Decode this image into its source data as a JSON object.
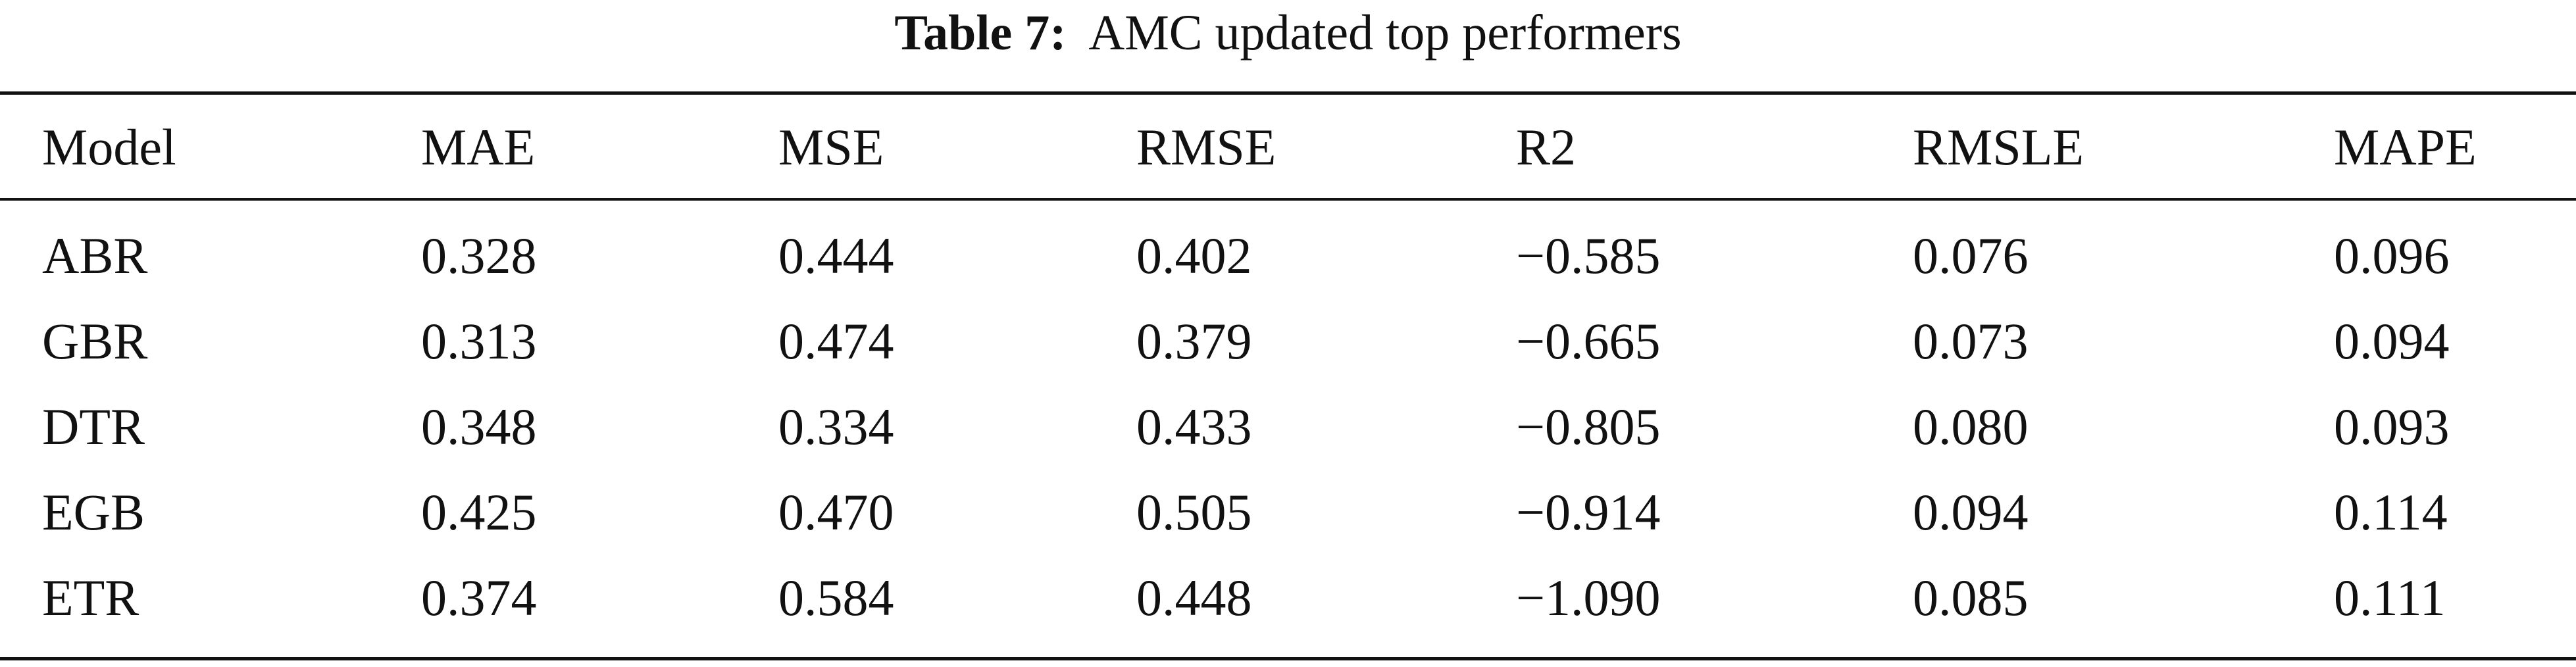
{
  "caption": {
    "label": "Table 7:",
    "text": "AMC updated top performers"
  },
  "table": {
    "columns": [
      "Model",
      "MAE",
      "MSE",
      "RMSE",
      "R2",
      "RMSLE",
      "MAPE"
    ],
    "rows": [
      [
        "ABR",
        "0.328",
        "0.444",
        "0.402",
        "−0.585",
        "0.076",
        "0.096"
      ],
      [
        "GBR",
        "0.313",
        "0.474",
        "0.379",
        "−0.665",
        "0.073",
        "0.094"
      ],
      [
        "DTR",
        "0.348",
        "0.334",
        "0.433",
        "−0.805",
        "0.080",
        "0.093"
      ],
      [
        "EGB",
        "0.425",
        "0.470",
        "0.505",
        "−0.914",
        "0.094",
        "0.114"
      ],
      [
        "ETR",
        "0.374",
        "0.584",
        "0.448",
        "−1.090",
        "0.085",
        "0.111"
      ]
    ]
  }
}
